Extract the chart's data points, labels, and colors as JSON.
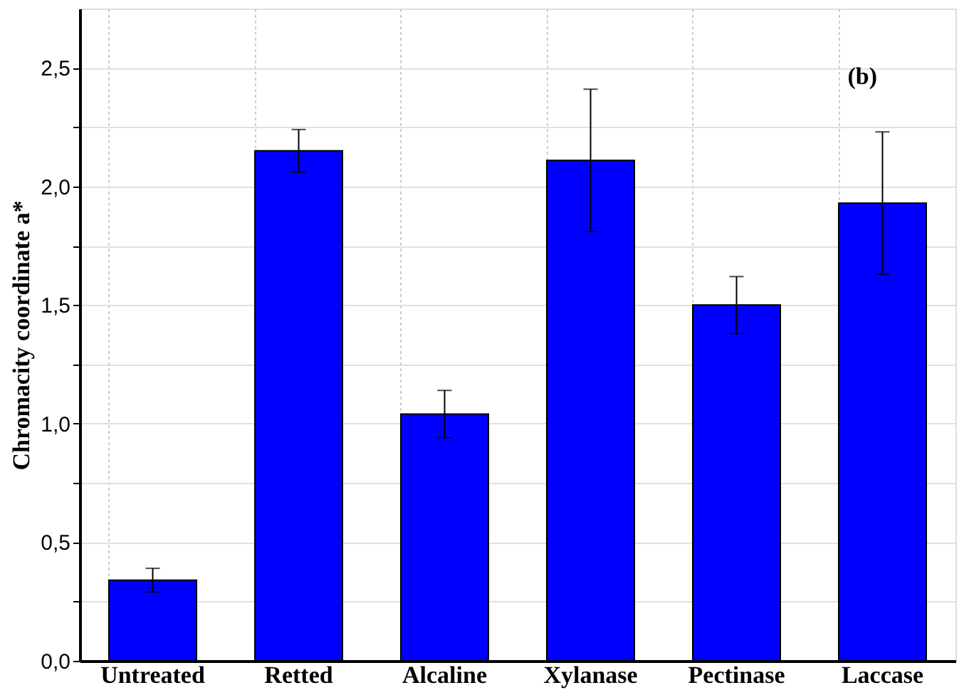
{
  "chart_data": {
    "type": "bar",
    "ylabel": "Chromacity coordinate a*",
    "categories": [
      "Untreated",
      "Retted",
      "Alcaline",
      "Xylanase",
      "Pectinase",
      "Laccase"
    ],
    "values": [
      0.34,
      2.15,
      1.04,
      2.11,
      1.5,
      1.93
    ],
    "errors": [
      0.05,
      0.09,
      0.1,
      0.3,
      0.12,
      0.3
    ],
    "color": "#0000ff",
    "ylim": [
      0,
      2.75
    ],
    "yticks": [
      {
        "value": 0,
        "label": "0,0"
      },
      {
        "value": 0.25,
        "label": null
      },
      {
        "value": 0.5,
        "label": "0,5"
      },
      {
        "value": 0.75,
        "label": null
      },
      {
        "value": 1,
        "label": "1,0"
      },
      {
        "value": 1.25,
        "label": null
      },
      {
        "value": 1.5,
        "label": "1,5"
      },
      {
        "value": 1.75,
        "label": null
      },
      {
        "value": 2,
        "label": "2,0"
      },
      {
        "value": 2.25,
        "label": null
      },
      {
        "value": 2.5,
        "label": "2,5"
      }
    ],
    "grid": true,
    "annotations": [
      "(b)"
    ]
  }
}
